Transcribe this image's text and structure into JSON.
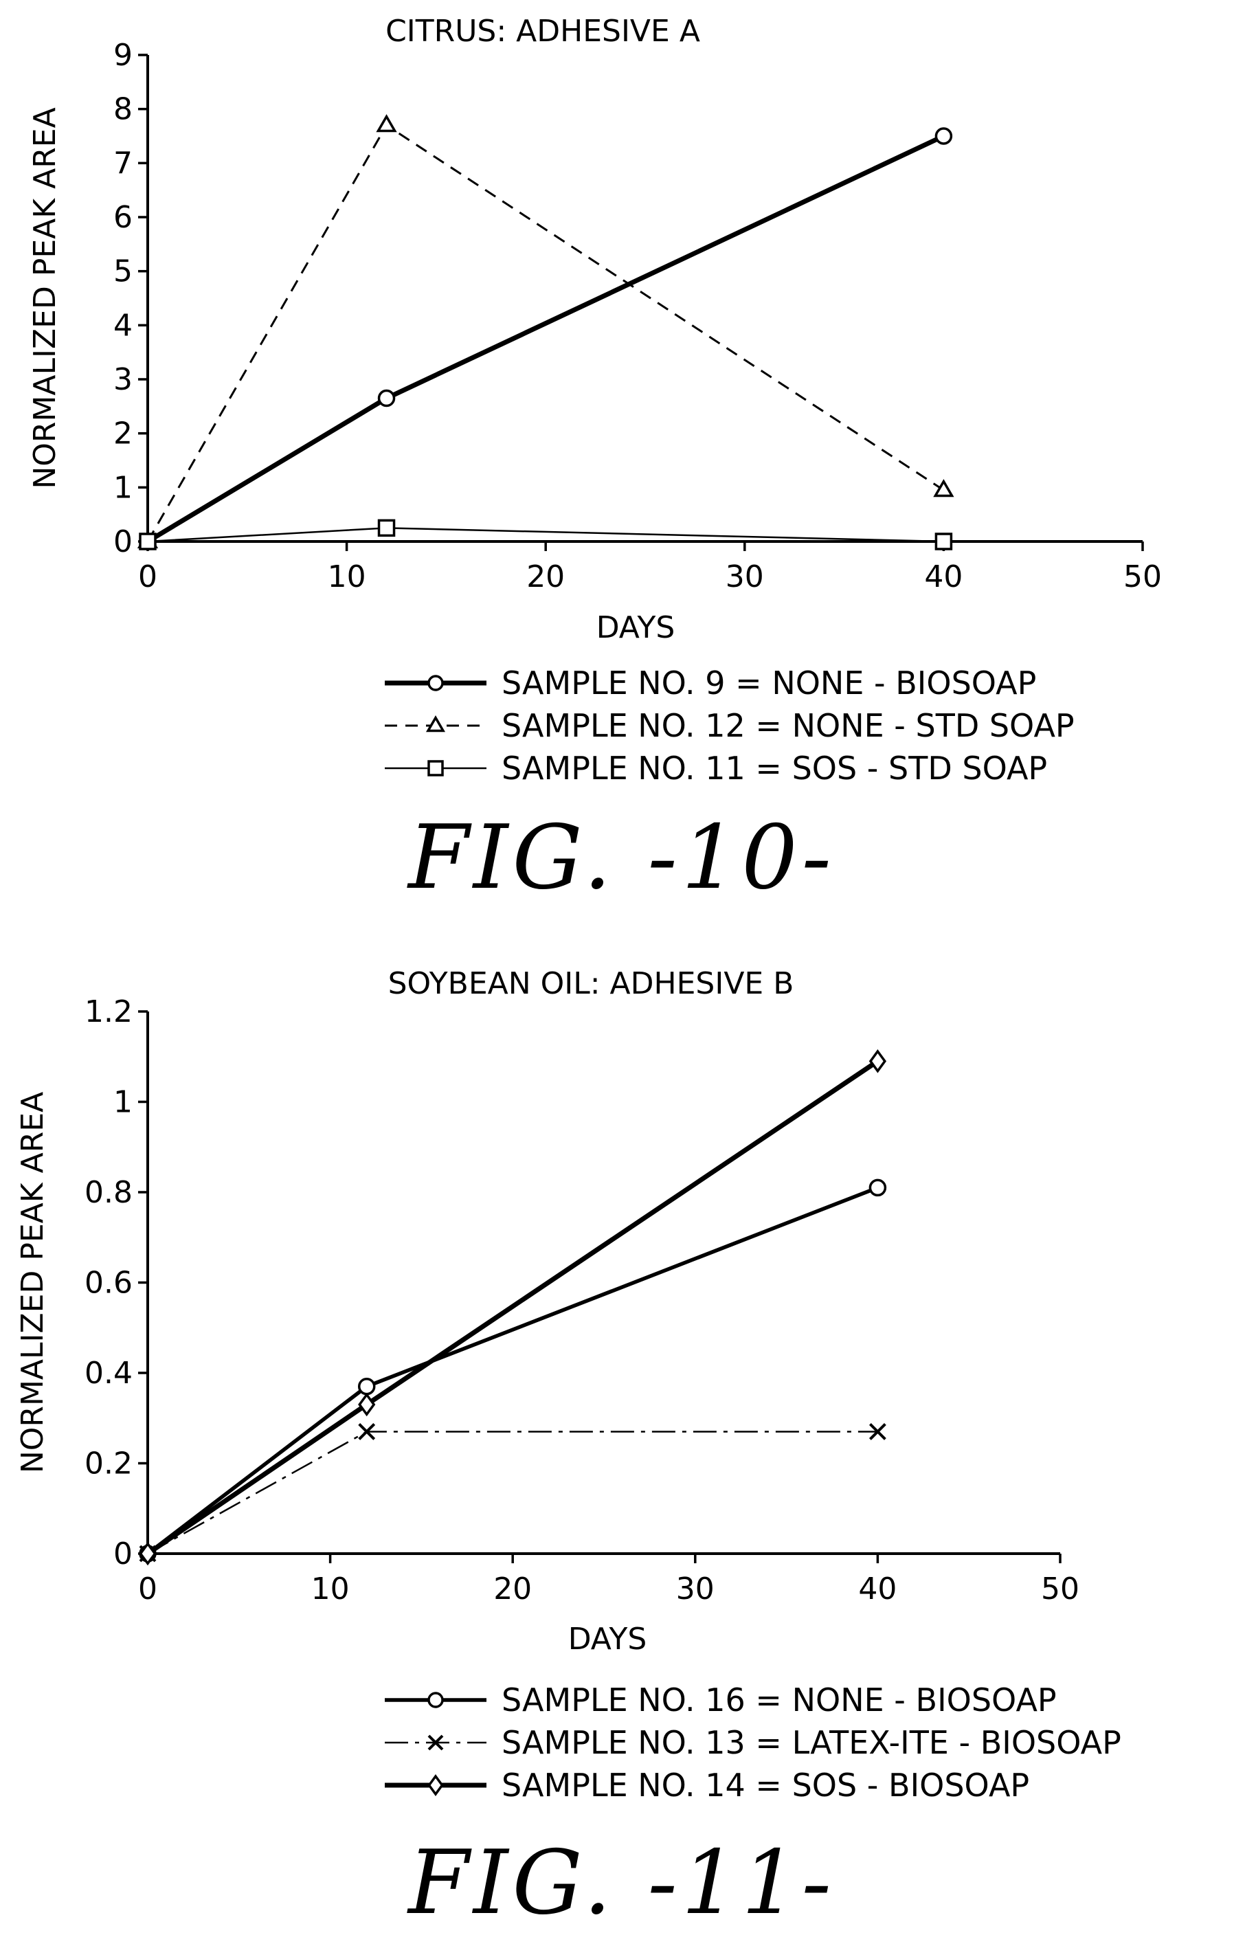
{
  "chart_data": [
    {
      "type": "line",
      "title": "CITRUS: ADHESIVE A",
      "xlabel": "DAYS",
      "ylabel": "NORMALIZED PEAK AREA",
      "xlim": [
        0,
        50
      ],
      "ylim": [
        0,
        9
      ],
      "xticks": [
        0,
        10,
        20,
        30,
        40,
        50
      ],
      "yticks": [
        0,
        1,
        2,
        3,
        4,
        5,
        6,
        7,
        8,
        9
      ],
      "xtick_labels": [
        "0",
        "10",
        "20",
        "30",
        "40",
        "50"
      ],
      "ytick_labels": [
        "0",
        "1",
        "2",
        "3",
        "4",
        "5",
        "6",
        "7",
        "8",
        "9"
      ],
      "grid": false,
      "legend_position": "bottom",
      "caption": "FIG. -10-",
      "series": [
        {
          "name": "SAMPLE NO. 9 = NONE - BIOSOAP",
          "marker": "circle",
          "line": "solid-thick",
          "x": [
            0,
            12,
            40
          ],
          "y": [
            0,
            2.65,
            7.5
          ]
        },
        {
          "name": "SAMPLE NO. 12 = NONE - STD SOAP",
          "marker": "triangle",
          "line": "dashed",
          "x": [
            0,
            12,
            40
          ],
          "y": [
            0,
            7.7,
            0.95
          ]
        },
        {
          "name": "SAMPLE NO. 11 = SOS - STD SOAP",
          "marker": "square",
          "line": "solid-thin",
          "x": [
            0,
            12,
            40
          ],
          "y": [
            0,
            0.25,
            0
          ]
        }
      ]
    },
    {
      "type": "line",
      "title": "SOYBEAN OIL: ADHESIVE B",
      "xlabel": "DAYS",
      "ylabel": "NORMALIZED PEAK AREA",
      "xlim": [
        0,
        50
      ],
      "ylim": [
        0,
        1.2
      ],
      "xticks": [
        0,
        10,
        20,
        30,
        40,
        50
      ],
      "yticks": [
        0,
        0.2,
        0.4,
        0.6,
        0.8,
        1.0,
        1.2
      ],
      "xtick_labels": [
        "0",
        "10",
        "20",
        "30",
        "40",
        "50"
      ],
      "ytick_labels": [
        "0",
        "0.2",
        "0.4",
        "0.6",
        "0.8",
        "1",
        "1.2"
      ],
      "grid": false,
      "legend_position": "bottom",
      "caption": "FIG. -11-",
      "series": [
        {
          "name": "SAMPLE NO. 16 = NONE - BIOSOAP",
          "marker": "circle",
          "line": "solid-medium",
          "x": [
            0,
            12,
            40
          ],
          "y": [
            0,
            0.37,
            0.81
          ]
        },
        {
          "name": "SAMPLE NO. 13 = LATEX-ITE - BIOSOAP",
          "marker": "x",
          "line": "dashdot",
          "x": [
            0,
            12,
            40
          ],
          "y": [
            0,
            0.27,
            0.27
          ]
        },
        {
          "name": "SAMPLE NO. 14 = SOS - BIOSOAP",
          "marker": "diamond",
          "line": "solid-thick",
          "x": [
            0,
            12,
            40
          ],
          "y": [
            0,
            0.33,
            1.09
          ]
        }
      ]
    }
  ],
  "colors": {
    "ink": "#000000",
    "background": "#ffffff"
  }
}
